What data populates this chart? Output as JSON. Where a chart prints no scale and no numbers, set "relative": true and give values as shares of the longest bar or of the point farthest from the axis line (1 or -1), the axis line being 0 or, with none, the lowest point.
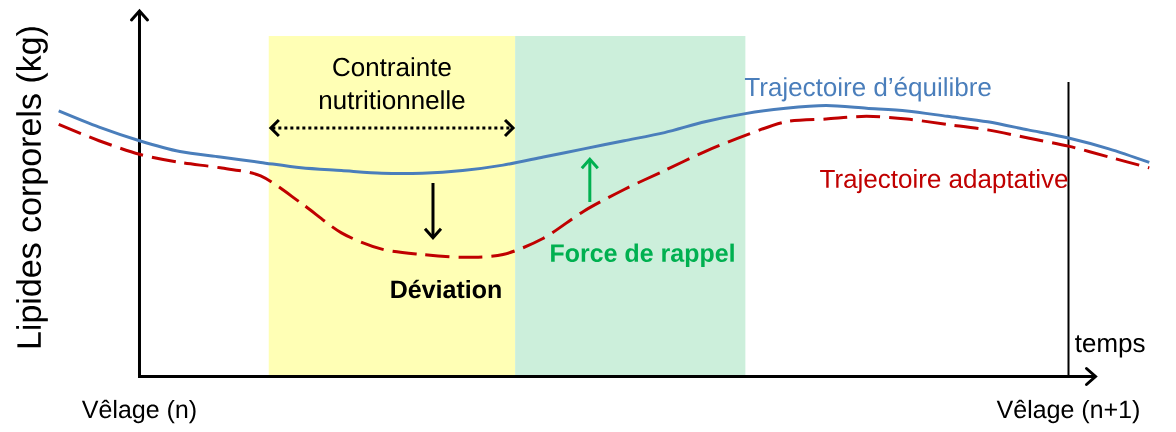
{
  "chart_data": {
    "type": "line",
    "relative": true,
    "xlabel": "temps",
    "ylabel": "Lipides corporels (kg)",
    "categories": [
      null,
      null,
      "Vêlage (n)",
      null,
      null,
      null,
      null,
      null,
      null,
      null,
      null,
      null,
      null,
      null,
      null,
      null,
      null,
      null,
      null,
      null,
      null,
      null,
      null,
      null,
      null,
      "Vêlage (n+1)",
      null,
      null
    ],
    "tick_labels": "x",
    "series": [
      {
        "name": "Trajectoire d’équilibre",
        "color": "#4a7ebb",
        "line_style": "solid",
        "values": [
          0.98,
          0.92,
          0.87,
          0.83,
          0.81,
          0.79,
          0.77,
          0.76,
          0.75,
          0.75,
          0.76,
          0.78,
          0.81,
          0.84,
          0.87,
          0.9,
          0.94,
          0.97,
          0.99,
          1.0,
          0.99,
          0.98,
          0.96,
          0.94,
          0.91,
          0.88,
          0.84,
          0.79
        ]
      },
      {
        "name": "Trajectoire adaptative",
        "color": "#c00000",
        "line_style": "dashed",
        "values": [
          0.93,
          0.87,
          0.82,
          0.79,
          0.77,
          0.74,
          0.64,
          0.53,
          0.47,
          0.45,
          0.44,
          0.45,
          0.51,
          0.61,
          0.69,
          0.76,
          0.83,
          0.89,
          0.94,
          0.95,
          0.96,
          0.95,
          0.93,
          0.91,
          0.88,
          0.85,
          0.81,
          0.77
        ]
      }
    ],
    "ref_lines": [
      {
        "axis": "x",
        "value": "Vêlage (n+1)",
        "color": "#000000"
      }
    ],
    "annotations": [
      "Contrainte nutritionnelle",
      "Déviation",
      "Force de rappel"
    ]
  }
}
